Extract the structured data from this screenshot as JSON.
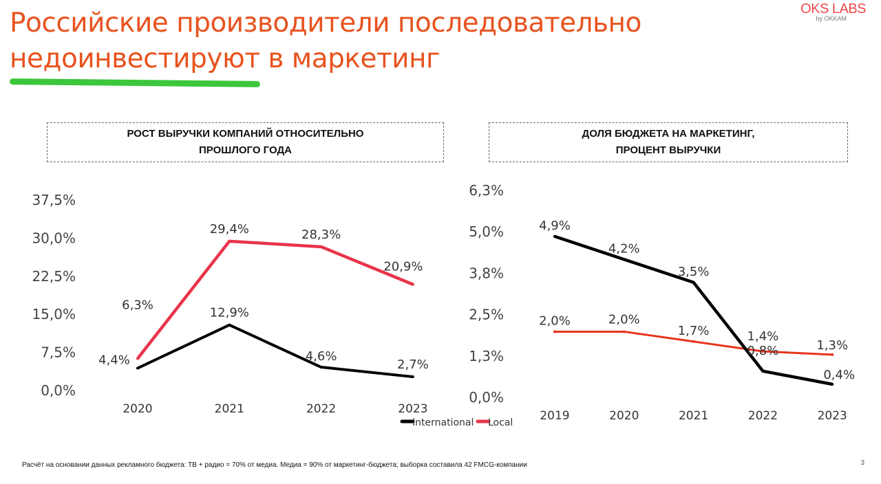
{
  "title_line1": "Российские производители последовательно",
  "title_line2": "недоинвестируют в маркетинг",
  "logo": {
    "name": "OKS LABS",
    "sub": "by OKKAM"
  },
  "footnote": "Расчёт на основании данных рекламного бюджета: ТВ + радио = 70% от медиа. Медиа = 90% от маркетинг-бюджета; выборка составила 42 FMCG-компании",
  "page_number": "3",
  "colors": {
    "title": "#e8531f",
    "international": "#000000",
    "local_left": "#e8344a",
    "local_right": "#e8341c"
  },
  "chart_data": [
    {
      "type": "line",
      "title_line1": "РОСТ ВЫРУЧКИ КОМПАНИЙ ОТНОСИТЕЛЬНО",
      "title_line2": "ПРОШЛОГО ГОДА",
      "categories": [
        "2020",
        "2021",
        "2022",
        "2023"
      ],
      "yticks": [
        "0,0%",
        "7,5%",
        "15,0%",
        "22,5%",
        "30,0%",
        "37,5%"
      ],
      "ylim": [
        0,
        37.5
      ],
      "series": [
        {
          "name": "International",
          "values": [
            4.4,
            12.9,
            4.6,
            2.7
          ],
          "labels": [
            "4,4%",
            "12,9%",
            "4,6%",
            "2,7%"
          ]
        },
        {
          "name": "Local",
          "values": [
            6.3,
            29.4,
            28.3,
            20.9
          ],
          "labels": [
            "6,3%",
            "29,4%",
            "28,3%",
            "20,9%"
          ]
        }
      ],
      "legend": "bottom-right"
    },
    {
      "type": "line",
      "title_line1": "ДОЛЯ БЮДЖЕТА НА МАРКЕТИНГ,",
      "title_line2": "ПРОЦЕНТ ВЫРУЧКИ",
      "categories": [
        "2019",
        "2020",
        "2021",
        "2022",
        "2023"
      ],
      "yticks": [
        "0,0%",
        "1,3%",
        "2,5%",
        "3,8%",
        "5,0%",
        "6,3%"
      ],
      "ylim": [
        0,
        6.3
      ],
      "series": [
        {
          "name": "International",
          "values": [
            4.9,
            4.2,
            3.5,
            0.8,
            0.4
          ],
          "labels": [
            "4,9%",
            "4,2%",
            "3,5%",
            "0,8%",
            "0,4%"
          ]
        },
        {
          "name": "Local",
          "values": [
            2.0,
            2.0,
            1.7,
            1.4,
            1.3
          ],
          "labels": [
            "2,0%",
            "2,0%",
            "1,7%",
            "1,4%",
            "1,3%"
          ]
        }
      ]
    }
  ]
}
